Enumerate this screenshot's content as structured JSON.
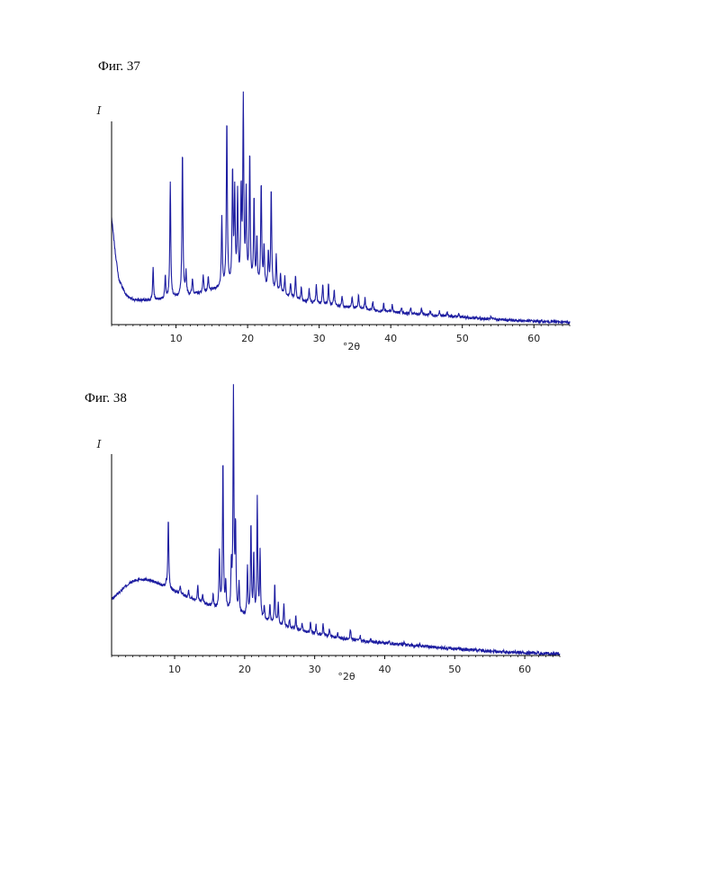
{
  "figures": [
    {
      "label": "Фиг. 37"
    },
    {
      "label": "Фиг. 38"
    }
  ],
  "colors": {
    "line": "#1c1ca0",
    "axis": "#000000"
  },
  "chart_data": [
    {
      "type": "line",
      "title": "Фиг. 37",
      "xlabel": "°2θ",
      "ylabel": "I",
      "xlim": [
        1,
        65
      ],
      "xticks": [
        10,
        20,
        30,
        40,
        50,
        60
      ],
      "tick_labels": [
        "10",
        "20",
        "30",
        "40",
        "50",
        "60"
      ],
      "grid": false,
      "baseline": [
        [
          1,
          0.47
        ],
        [
          1.5,
          0.32
        ],
        [
          2,
          0.2
        ],
        [
          3,
          0.13
        ],
        [
          4,
          0.11
        ],
        [
          6,
          0.105
        ],
        [
          8,
          0.11
        ],
        [
          10,
          0.12
        ],
        [
          12,
          0.13
        ],
        [
          14,
          0.14
        ],
        [
          16,
          0.16
        ],
        [
          18,
          0.17
        ],
        [
          20,
          0.17
        ],
        [
          22,
          0.16
        ],
        [
          24,
          0.14
        ],
        [
          26,
          0.12
        ],
        [
          28,
          0.1
        ],
        [
          30,
          0.09
        ],
        [
          34,
          0.075
        ],
        [
          38,
          0.06
        ],
        [
          42,
          0.05
        ],
        [
          46,
          0.04
        ],
        [
          50,
          0.032
        ],
        [
          55,
          0.022
        ],
        [
          60,
          0.015
        ],
        [
          65,
          0.01
        ]
      ],
      "peaks": [
        [
          6.8,
          0.14
        ],
        [
          8.5,
          0.1
        ],
        [
          9.2,
          0.51
        ],
        [
          10.9,
          0.64
        ],
        [
          11.4,
          0.1
        ],
        [
          12.3,
          0.07
        ],
        [
          13.8,
          0.08
        ],
        [
          14.5,
          0.06
        ],
        [
          16.4,
          0.3
        ],
        [
          17.1,
          0.74
        ],
        [
          17.9,
          0.5
        ],
        [
          18.2,
          0.4
        ],
        [
          18.6,
          0.39
        ],
        [
          19.1,
          0.4
        ],
        [
          19.4,
          0.8
        ],
        [
          19.8,
          0.39
        ],
        [
          20.3,
          0.58
        ],
        [
          20.9,
          0.38
        ],
        [
          21.3,
          0.2
        ],
        [
          21.9,
          0.46
        ],
        [
          22.3,
          0.18
        ],
        [
          22.9,
          0.16
        ],
        [
          23.3,
          0.45
        ],
        [
          24.0,
          0.16
        ],
        [
          24.6,
          0.09
        ],
        [
          25.2,
          0.08
        ],
        [
          26.0,
          0.06
        ],
        [
          26.7,
          0.1
        ],
        [
          27.5,
          0.06
        ],
        [
          28.6,
          0.06
        ],
        [
          29.6,
          0.08
        ],
        [
          30.5,
          0.09
        ],
        [
          31.3,
          0.09
        ],
        [
          32.1,
          0.07
        ],
        [
          33.2,
          0.05
        ],
        [
          34.6,
          0.05
        ],
        [
          35.5,
          0.06
        ],
        [
          36.4,
          0.05
        ],
        [
          37.5,
          0.04
        ],
        [
          39.0,
          0.035
        ],
        [
          40.2,
          0.03
        ],
        [
          41.5,
          0.025
        ],
        [
          42.8,
          0.025
        ],
        [
          44.3,
          0.03
        ],
        [
          45.5,
          0.02
        ],
        [
          46.8,
          0.02
        ],
        [
          47.9,
          0.02
        ],
        [
          49.5,
          0.015
        ],
        [
          54.0,
          0.01
        ]
      ],
      "peak_width": 0.16,
      "noise": 0.006
    },
    {
      "type": "line",
      "title": "Фиг. 38",
      "xlabel": "°2θ",
      "ylabel": "I",
      "xlim": [
        1,
        65
      ],
      "xticks": [
        10,
        20,
        30,
        40,
        50,
        60
      ],
      "tick_labels": [
        "10",
        "20",
        "30",
        "40",
        "50",
        "60"
      ],
      "grid": false,
      "baseline": [
        [
          1,
          0.25
        ],
        [
          2,
          0.28
        ],
        [
          3,
          0.31
        ],
        [
          4,
          0.33
        ],
        [
          5,
          0.34
        ],
        [
          6,
          0.34
        ],
        [
          7,
          0.33
        ],
        [
          8,
          0.315
        ],
        [
          9,
          0.3
        ],
        [
          10,
          0.285
        ],
        [
          12,
          0.26
        ],
        [
          14,
          0.235
        ],
        [
          16,
          0.21
        ],
        [
          18,
          0.19
        ],
        [
          20,
          0.175
        ],
        [
          22,
          0.16
        ],
        [
          24,
          0.145
        ],
        [
          26,
          0.125
        ],
        [
          28,
          0.11
        ],
        [
          30,
          0.095
        ],
        [
          34,
          0.075
        ],
        [
          38,
          0.06
        ],
        [
          42,
          0.05
        ],
        [
          46,
          0.04
        ],
        [
          50,
          0.03
        ],
        [
          55,
          0.02
        ],
        [
          60,
          0.012
        ],
        [
          65,
          0.008
        ]
      ],
      "peaks": [
        [
          8.8,
          0.02
        ],
        [
          9.1,
          0.32
        ],
        [
          10.8,
          0.04
        ],
        [
          12.0,
          0.03
        ],
        [
          13.3,
          0.07
        ],
        [
          14.0,
          0.04
        ],
        [
          15.5,
          0.05
        ],
        [
          16.4,
          0.26
        ],
        [
          16.9,
          0.68
        ],
        [
          17.3,
          0.12
        ],
        [
          18.1,
          0.2
        ],
        [
          18.4,
          0.99
        ],
        [
          18.7,
          0.38
        ],
        [
          19.2,
          0.14
        ],
        [
          20.4,
          0.22
        ],
        [
          20.9,
          0.42
        ],
        [
          21.3,
          0.28
        ],
        [
          21.8,
          0.54
        ],
        [
          22.2,
          0.3
        ],
        [
          22.8,
          0.06
        ],
        [
          23.6,
          0.08
        ],
        [
          24.3,
          0.18
        ],
        [
          24.8,
          0.1
        ],
        [
          25.6,
          0.1
        ],
        [
          26.4,
          0.04
        ],
        [
          27.3,
          0.06
        ],
        [
          28.2,
          0.04
        ],
        [
          29.4,
          0.05
        ],
        [
          30.2,
          0.04
        ],
        [
          31.2,
          0.05
        ],
        [
          32.1,
          0.03
        ],
        [
          33.3,
          0.02
        ],
        [
          35.1,
          0.05
        ],
        [
          36.5,
          0.02
        ],
        [
          38.0,
          0.015
        ],
        [
          40.6,
          0.015
        ],
        [
          42.8,
          0.012
        ],
        [
          45.0,
          0.01
        ]
      ],
      "peak_width": 0.15,
      "noise": 0.007
    }
  ]
}
